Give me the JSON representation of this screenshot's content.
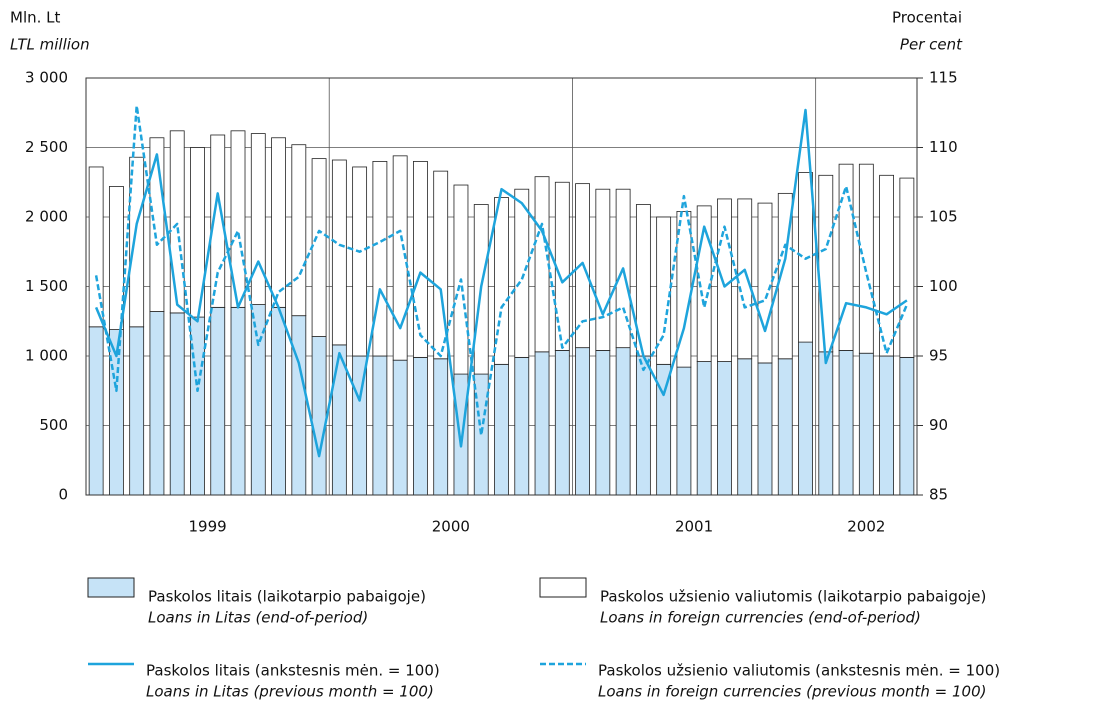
{
  "chart_data": {
    "type": "bar",
    "stacked": true,
    "y_label": "Mln. Lt",
    "y_label_en": "LTL million",
    "y2_label": "Procentai",
    "y2_label_en": "Per cent",
    "year_labels": [
      "1999",
      "2000",
      "2001",
      "2002"
    ],
    "categories": [
      null,
      null,
      null,
      null,
      null,
      null,
      null,
      null,
      null,
      null,
      null,
      null,
      null,
      null,
      null,
      null,
      null,
      null,
      null,
      null,
      null,
      null,
      null,
      null,
      null,
      null,
      null,
      null,
      null,
      null,
      null,
      null,
      null,
      null,
      null,
      null,
      null,
      null,
      null,
      null,
      null
    ],
    "ylim": [
      0,
      3000
    ],
    "yticks": [
      0,
      500,
      {
        "value": 1000,
        "label": "1 000"
      },
      {
        "value": 1500,
        "label": "1 500"
      },
      {
        "value": 2000,
        "label": "2 000"
      },
      {
        "value": 2500,
        "label": "2 500"
      },
      {
        "value": 3000,
        "label": "3 000"
      }
    ],
    "y2lim": [
      85,
      115
    ],
    "y2ticks": [
      85,
      90,
      95,
      100,
      105,
      110,
      115
    ],
    "grid": true,
    "series": [
      {
        "name": "Paskolos litais (laikotarpio pabaigoje)",
        "name_en": "Loans in Litas (end-of-period)",
        "color": "#c6e3f7",
        "kind": "bar",
        "values": [
          1210,
          1190,
          1210,
          1320,
          1310,
          1280,
          1350,
          1350,
          1370,
          1350,
          1290,
          1140,
          1080,
          1000,
          1000,
          970,
          990,
          980,
          870,
          870,
          940,
          990,
          1030,
          1040,
          1060,
          1040,
          1060,
          1000,
          940,
          920,
          960,
          960,
          980,
          950,
          980,
          1100,
          1030,
          1040,
          1020,
          1000,
          990
        ]
      },
      {
        "name": "Paskolos užsienio valiutomis (laikotarpio pabaigoje)",
        "name_en": "Loans in foreign currencies (end-of-period)",
        "color": "#ffffff",
        "kind": "bar",
        "values": [
          1150,
          1030,
          1220,
          1250,
          1310,
          1220,
          1240,
          1270,
          1230,
          1220,
          1230,
          1280,
          1330,
          1360,
          1400,
          1470,
          1410,
          1350,
          1360,
          1220,
          1200,
          1210,
          1260,
          1210,
          1180,
          1160,
          1140,
          1090,
          1060,
          1120,
          1120,
          1170,
          1150,
          1150,
          1190,
          1220,
          1270,
          1340,
          1360,
          1300,
          1290
        ]
      },
      {
        "name": "Paskolos litais (ankstesnis mėn. = 100)",
        "name_en": "Loans in Litas (previous month = 100)",
        "color": "#1ea4dc",
        "kind": "line",
        "dash": false,
        "axis": "y2",
        "values": [
          98.5,
          95,
          104.5,
          109.5,
          98.7,
          97.5,
          106.7,
          98.5,
          101.8,
          98.5,
          94.5,
          87.8,
          95.2,
          91.8,
          99.8,
          97,
          101,
          99.8,
          88.5,
          100,
          107,
          106,
          104,
          100.3,
          101.7,
          98,
          101.3,
          95,
          92.2,
          97,
          104.3,
          100,
          101.2,
          96.8,
          102,
          112.7,
          94.5,
          98.8,
          98.5,
          98,
          99
        ]
      },
      {
        "name": "Paskolos užsienio valiutomis (ankstesnis mėn. = 100)",
        "name_en": "Loans in foreign currencies (previous month = 100)",
        "color": "#1ea4dc",
        "kind": "line",
        "dash": true,
        "axis": "y2",
        "values": [
          100.8,
          92.5,
          113,
          103,
          104.5,
          92.5,
          101,
          104,
          95.8,
          99.6,
          100.7,
          104,
          103,
          102.5,
          103.2,
          104,
          96.5,
          95,
          100.5,
          89.3,
          98.5,
          100.5,
          104.5,
          95.6,
          97.5,
          97.8,
          98.5,
          94,
          96.5,
          106.5,
          98.5,
          104.3,
          98.5,
          99,
          103,
          102,
          102.7,
          107.2,
          101,
          95.2,
          98.7
        ]
      }
    ]
  }
}
